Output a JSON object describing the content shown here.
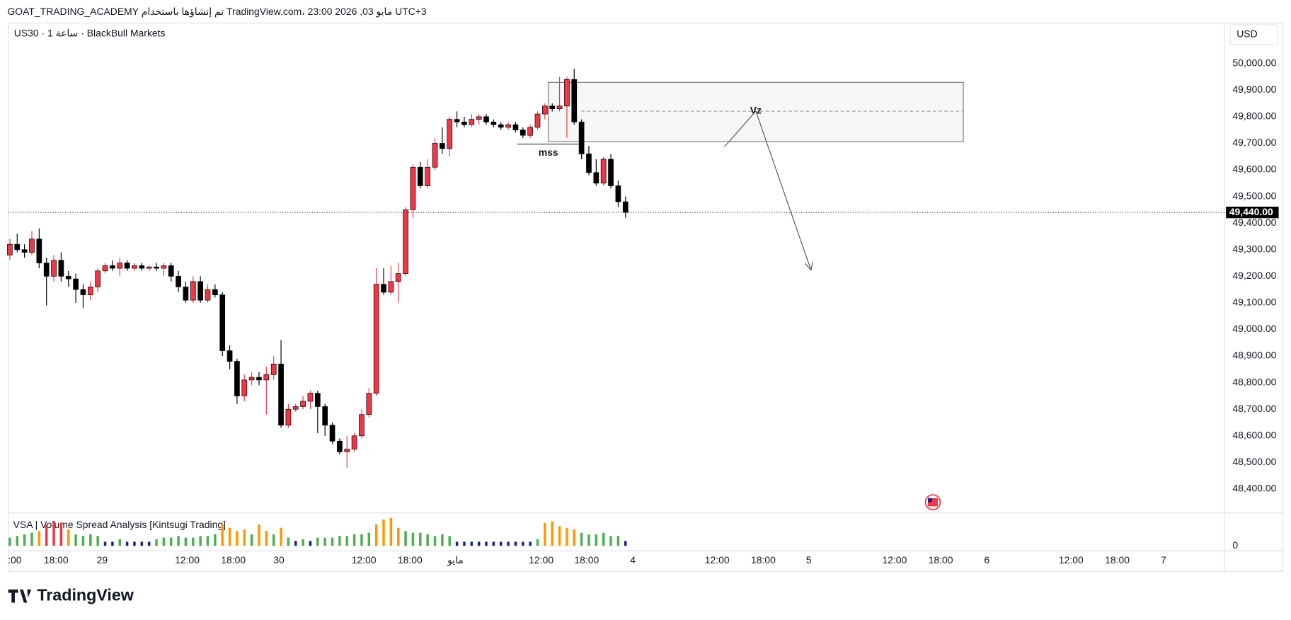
{
  "header": "GOAT_TRADING_ACADEMY تم إنشاؤها باستخدام TradingView.com، مايو 03, 2026 23:00 UTC+3",
  "logo": "TradingView",
  "chart_data": {
    "type": "candlestick",
    "symbol": "US30 · 1 ساعة · BlackBull Markets",
    "currency": "USD",
    "up_color": "#f23645",
    "down_color": "#000000",
    "xlim": [
      -0.22,
      165.7
    ],
    "ylim": [
      48310,
      50152
    ],
    "yticks": [
      {
        "value": 48400,
        "label": "48,400.00"
      },
      {
        "value": 48500,
        "label": "48,500.00"
      },
      {
        "value": 48600,
        "label": "48,600.00"
      },
      {
        "value": 48700,
        "label": "48,700.00"
      },
      {
        "value": 48800,
        "label": "48,800.00"
      },
      {
        "value": 48900,
        "label": "48,900.00"
      },
      {
        "value": 49000,
        "label": "49,000.00"
      },
      {
        "value": 49100,
        "label": "49,100.00"
      },
      {
        "value": 49200,
        "label": "49,200.00"
      },
      {
        "value": 49300,
        "label": "49,300.00"
      },
      {
        "value": 49400,
        "label": "49,400.00"
      },
      {
        "value": 49500,
        "label": "49,500.00"
      },
      {
        "value": 49600,
        "label": "49,600.00"
      },
      {
        "value": 49700,
        "label": "49,700.00"
      },
      {
        "value": 49800,
        "label": "49,800.00"
      },
      {
        "value": 49900,
        "label": "49,900.00"
      },
      {
        "value": 50000,
        "label": "50,000.00"
      }
    ],
    "xticks": [
      {
        "value": 0.67,
        "label": ":00"
      },
      {
        "value": 6.3,
        "label": "18:00"
      },
      {
        "value": 12.6,
        "label": "29"
      },
      {
        "value": 24.2,
        "label": "12:00"
      },
      {
        "value": 30.5,
        "label": "18:00"
      },
      {
        "value": 36.7,
        "label": "30"
      },
      {
        "value": 48.3,
        "label": "12:00"
      },
      {
        "value": 54.6,
        "label": "18:00"
      },
      {
        "value": 60.8,
        "label": "مايو"
      },
      {
        "value": 72.5,
        "label": "12:00"
      },
      {
        "value": 78.7,
        "label": "18:00"
      },
      {
        "value": 85,
        "label": "4"
      },
      {
        "value": 96.5,
        "label": "12:00"
      },
      {
        "value": 102.8,
        "label": "18:00"
      },
      {
        "value": 109,
        "label": "5"
      },
      {
        "value": 120.7,
        "label": "12:00"
      },
      {
        "value": 127,
        "label": "18:00"
      },
      {
        "value": 133.3,
        "label": "6"
      },
      {
        "value": 144.8,
        "label": "12:00"
      },
      {
        "value": 151.1,
        "label": "18:00"
      },
      {
        "value": 157.4,
        "label": "7"
      }
    ],
    "last_price": {
      "value": 49440,
      "label": "49,440.00"
    },
    "annotations": [
      "mss",
      "Vz"
    ],
    "candles": [
      [
        49280,
        49340,
        49260,
        49320
      ],
      [
        49320,
        49360,
        49290,
        49300
      ],
      [
        49300,
        49320,
        49270,
        49290
      ],
      [
        49290,
        49370,
        49280,
        49340
      ],
      [
        49340,
        49380,
        49230,
        49250
      ],
      [
        49250,
        49270,
        49090,
        49200
      ],
      [
        49200,
        49280,
        49180,
        49260
      ],
      [
        49260,
        49290,
        49180,
        49200
      ],
      [
        49200,
        49220,
        49160,
        49190
      ],
      [
        49190,
        49210,
        49100,
        49150
      ],
      [
        49150,
        49170,
        49080,
        49130
      ],
      [
        49130,
        49180,
        49110,
        49160
      ],
      [
        49160,
        49230,
        49140,
        49220
      ],
      [
        49220,
        49250,
        49210,
        49240
      ],
      [
        49240,
        49260,
        49220,
        49230
      ],
      [
        49230,
        49270,
        49200,
        49250
      ],
      [
        49250,
        49260,
        49220,
        49230
      ],
      [
        49230,
        49250,
        49220,
        49240
      ],
      [
        49240,
        49250,
        49220,
        49230
      ],
      [
        49230,
        49240,
        49220,
        49235
      ],
      [
        49235,
        49250,
        49220,
        49230
      ],
      [
        49230,
        49250,
        49200,
        49240
      ],
      [
        49240,
        49250,
        49180,
        49200
      ],
      [
        49200,
        49220,
        49140,
        49160
      ],
      [
        49160,
        49180,
        49100,
        49110
      ],
      [
        49110,
        49200,
        49100,
        49180
      ],
      [
        49180,
        49200,
        49100,
        49110
      ],
      [
        49110,
        49170,
        49100,
        49150
      ],
      [
        49150,
        49170,
        49120,
        49130
      ],
      [
        49130,
        49140,
        48900,
        48920
      ],
      [
        48920,
        48940,
        48850,
        48880
      ],
      [
        48880,
        48890,
        48720,
        48750
      ],
      [
        48750,
        48830,
        48730,
        48810
      ],
      [
        48810,
        48840,
        48790,
        48820
      ],
      [
        48820,
        48840,
        48790,
        48810
      ],
      [
        48810,
        48860,
        48680,
        48830
      ],
      [
        48830,
        48900,
        48810,
        48870
      ],
      [
        48870,
        48960,
        48630,
        48640
      ],
      [
        48640,
        48720,
        48630,
        48700
      ],
      [
        48700,
        48720,
        48690,
        48710
      ],
      [
        48710,
        48750,
        48700,
        48730
      ],
      [
        48730,
        48770,
        48700,
        48760
      ],
      [
        48760,
        48770,
        48610,
        48710
      ],
      [
        48710,
        48720,
        48600,
        48640
      ],
      [
        48640,
        48650,
        48570,
        48580
      ],
      [
        48580,
        48590,
        48530,
        48540
      ],
      [
        48540,
        48600,
        48480,
        48550
      ],
      [
        48550,
        48610,
        48540,
        48600
      ],
      [
        48600,
        48700,
        48590,
        48680
      ],
      [
        48680,
        48780,
        48670,
        48760
      ],
      [
        48760,
        49230,
        48750,
        49170
      ],
      [
        49170,
        49230,
        49130,
        49140
      ],
      [
        49140,
        49240,
        49130,
        49180
      ],
      [
        49180,
        49250,
        49100,
        49210
      ],
      [
        49210,
        49460,
        49200,
        49450
      ],
      [
        49450,
        49620,
        49420,
        49610
      ],
      [
        49610,
        49630,
        49530,
        49540
      ],
      [
        49540,
        49640,
        49530,
        49610
      ],
      [
        49610,
        49720,
        49600,
        49700
      ],
      [
        49700,
        49760,
        49660,
        49680
      ],
      [
        49680,
        49800,
        49650,
        49790
      ],
      [
        49790,
        49820,
        49760,
        49780
      ],
      [
        49780,
        49800,
        49760,
        49770
      ],
      [
        49770,
        49810,
        49760,
        49790
      ],
      [
        49790,
        49810,
        49770,
        49800
      ],
      [
        49800,
        49810,
        49770,
        49780
      ],
      [
        49780,
        49790,
        49760,
        49770
      ],
      [
        49770,
        49780,
        49750,
        49760
      ],
      [
        49760,
        49780,
        49750,
        49770
      ],
      [
        49770,
        49780,
        49740,
        49750
      ],
      [
        49750,
        49760,
        49720,
        49730
      ],
      [
        49730,
        49770,
        49720,
        49760
      ],
      [
        49760,
        49820,
        49750,
        49810
      ],
      [
        49810,
        49850,
        49790,
        49840
      ],
      [
        49840,
        49850,
        49820,
        49830
      ],
      [
        49830,
        49950,
        49820,
        49840
      ],
      [
        49840,
        49950,
        49720,
        49940
      ],
      [
        49940,
        49980,
        49770,
        49780
      ],
      [
        49780,
        49790,
        49640,
        49660
      ],
      [
        49660,
        49690,
        49580,
        49590
      ],
      [
        49590,
        49640,
        49540,
        49550
      ],
      [
        49550,
        49650,
        49540,
        49640
      ],
      [
        49640,
        49660,
        49530,
        49540
      ],
      [
        49540,
        49560,
        49460,
        49480
      ],
      [
        49480,
        49500,
        49420,
        49440
      ]
    ],
    "indicator": {
      "name": "VSA | Volume Spread Analysis [Kintsugi Trading]",
      "vlim": [
        0,
        40
      ],
      "vticks": [
        0
      ],
      "values": [
        10,
        12,
        14,
        16,
        18,
        26,
        30,
        28,
        20,
        14,
        12,
        14,
        12,
        5,
        5,
        8,
        5,
        5,
        5,
        5,
        8,
        10,
        10,
        12,
        10,
        10,
        12,
        12,
        14,
        26,
        22,
        18,
        20,
        14,
        26,
        18,
        14,
        22,
        10,
        6,
        8,
        6,
        10,
        10,
        10,
        12,
        12,
        14,
        14,
        16,
        26,
        32,
        34,
        22,
        18,
        16,
        16,
        14,
        12,
        14,
        12,
        5,
        5,
        5,
        5,
        5,
        5,
        5,
        5,
        5,
        5,
        5,
        8,
        28,
        30,
        24,
        22,
        20,
        16,
        14,
        14,
        16,
        12,
        12,
        6
      ],
      "colors": [
        "#4caf50",
        "#4caf50",
        "#4caf50",
        "#4caf50",
        "#ff9800",
        "#f23645",
        "#f23645",
        "#f23645",
        "#ff9800",
        "#4caf50",
        "#4caf50",
        "#4caf50",
        "#4caf50",
        "#1a237e",
        "#1a237e",
        "#4caf50",
        "#1a237e",
        "#1a237e",
        "#1a237e",
        "#1a237e",
        "#4caf50",
        "#4caf50",
        "#4caf50",
        "#4caf50",
        "#4caf50",
        "#4caf50",
        "#4caf50",
        "#4caf50",
        "#4caf50",
        "#ff9800",
        "#ff9800",
        "#ff9800",
        "#ff9800",
        "#4caf50",
        "#ff9800",
        "#ff9800",
        "#4caf50",
        "#ff9800",
        "#4caf50",
        "#1a237e",
        "#4caf50",
        "#1a237e",
        "#4caf50",
        "#4caf50",
        "#4caf50",
        "#4caf50",
        "#4caf50",
        "#4caf50",
        "#4caf50",
        "#4caf50",
        "#ff9800",
        "#ff9800",
        "#ff9800",
        "#ff9800",
        "#4caf50",
        "#4caf50",
        "#4caf50",
        "#4caf50",
        "#4caf50",
        "#4caf50",
        "#4caf50",
        "#1a237e",
        "#1a237e",
        "#1a237e",
        "#1a237e",
        "#1a237e",
        "#1a237e",
        "#1a237e",
        "#1a237e",
        "#1a237e",
        "#1a237e",
        "#1a237e",
        "#4caf50",
        "#ff9800",
        "#ff9800",
        "#ff9800",
        "#ff9800",
        "#ff9800",
        "#4caf50",
        "#4caf50",
        "#4caf50",
        "#4caf50",
        "#4caf50",
        "#4caf50",
        "#1a237e"
      ]
    }
  }
}
